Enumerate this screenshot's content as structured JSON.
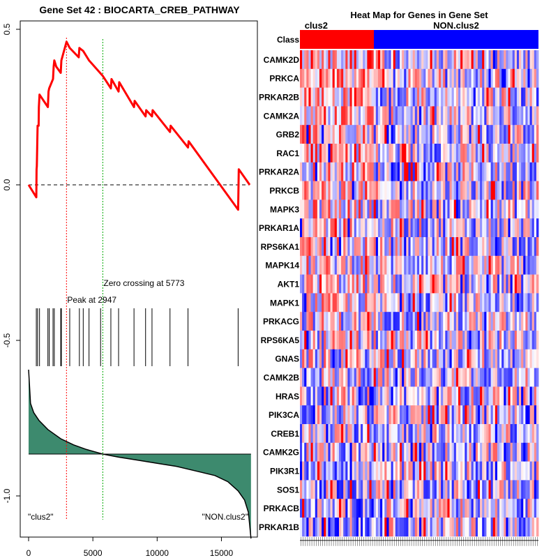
{
  "chart_data": [
    {
      "type": "line",
      "title": "Gene Set  42 : BIOCARTA_CREB_PATHWAY",
      "xlim": [
        0,
        17400
      ],
      "ylim": [
        -1.05,
        0.5
      ],
      "x_ticks": [
        0,
        5000,
        10000,
        15000
      ],
      "y_ticks": [
        0.5,
        0.0,
        -0.5,
        -1.0
      ],
      "x_tick_labels": [
        "0",
        "5000",
        "10000",
        "15000"
      ],
      "y_tick_labels": [
        "0.5",
        "0.0",
        "-0.5",
        "-1.0"
      ],
      "baseline": 0.0,
      "running_es": {
        "name": "Enrichment score",
        "color": "#ff0000",
        "x": [
          0,
          600,
          620,
          640,
          650,
          700,
          720,
          780,
          800,
          850,
          1500,
          1550,
          1600,
          1900,
          1950,
          2000,
          2150,
          2500,
          2550,
          2950,
          3200,
          3900,
          3950,
          4250,
          4700,
          5773,
          6400,
          6450,
          7000,
          7050,
          8200,
          8250,
          9100,
          9150,
          9600,
          9650,
          11000,
          11050,
          12400,
          12450,
          14900,
          16300,
          16350,
          17200
        ],
        "y": [
          0.0,
          -0.04,
          0.05,
          0.06,
          0.08,
          0.19,
          0.19,
          0.19,
          0.25,
          0.29,
          0.25,
          0.3,
          0.31,
          0.34,
          0.38,
          0.4,
          0.38,
          0.36,
          0.4,
          0.46,
          0.44,
          0.41,
          0.44,
          0.43,
          0.4,
          0.35,
          0.31,
          0.34,
          0.3,
          0.33,
          0.25,
          0.27,
          0.22,
          0.24,
          0.22,
          0.24,
          0.17,
          0.19,
          0.12,
          0.14,
          0.0,
          -0.08,
          0.05,
          0.0
        ]
      },
      "peak": {
        "x": 2947,
        "label": "Peak at 2947",
        "color": "#ff0000"
      },
      "zero_crossing": {
        "x": 5773,
        "label": "Zero crossing at 5773",
        "color": "#00aa00"
      },
      "hits": [
        600,
        700,
        850,
        1500,
        1600,
        1900,
        2000,
        2500,
        2550,
        3200,
        3950,
        4250,
        4700,
        5600,
        6400,
        7000,
        8200,
        9100,
        9600,
        11000,
        12400,
        16300
      ],
      "ranked_metric": {
        "color": "#3d8a6e",
        "x": [
          0,
          150,
          400,
          800,
          1500,
          2500,
          3500,
          4500,
          5773,
          7000,
          8500,
          10000,
          11500,
          13000,
          14500,
          15500,
          16300,
          16800,
          17100,
          17300
        ],
        "y": [
          0.55,
          0.33,
          0.27,
          0.22,
          0.16,
          0.1,
          0.06,
          0.03,
          0.0,
          -0.02,
          -0.04,
          -0.06,
          -0.08,
          -0.11,
          -0.14,
          -0.18,
          -0.24,
          -0.3,
          -0.38,
          -0.55
        ]
      },
      "left_label": "\"clus2\"",
      "right_label": "\"NON.clus2\""
    },
    {
      "type": "heatmap",
      "title": "Heat Map for Genes in Gene Set",
      "class_row_label": "Class",
      "classes": [
        {
          "name": "clus2",
          "color": "#ff0000",
          "fraction": 0.31
        },
        {
          "name": "NON.clus2",
          "color": "#0000ff",
          "fraction": 0.69
        }
      ],
      "genes": [
        "CAMK2D",
        "PRKCA",
        "PRKAR2B",
        "CAMK2A",
        "GRB2",
        "RAC1",
        "PRKAR2A",
        "PRKCB",
        "MAPK3",
        "PRKAR1A",
        "RPS6KA1",
        "MAPK14",
        "AKT1",
        "MAPK1",
        "PRKACG",
        "RPS6KA5",
        "GNAS",
        "CAMK2B",
        "HRAS",
        "PIK3CA",
        "CREB1",
        "CAMK2G",
        "PIK3R1",
        "SOS1",
        "PRKACB",
        "PRKAR1B"
      ],
      "samples": 110,
      "color_low": "#0000ff",
      "color_mid": "#ffffff",
      "color_high": "#ff0000"
    }
  ]
}
